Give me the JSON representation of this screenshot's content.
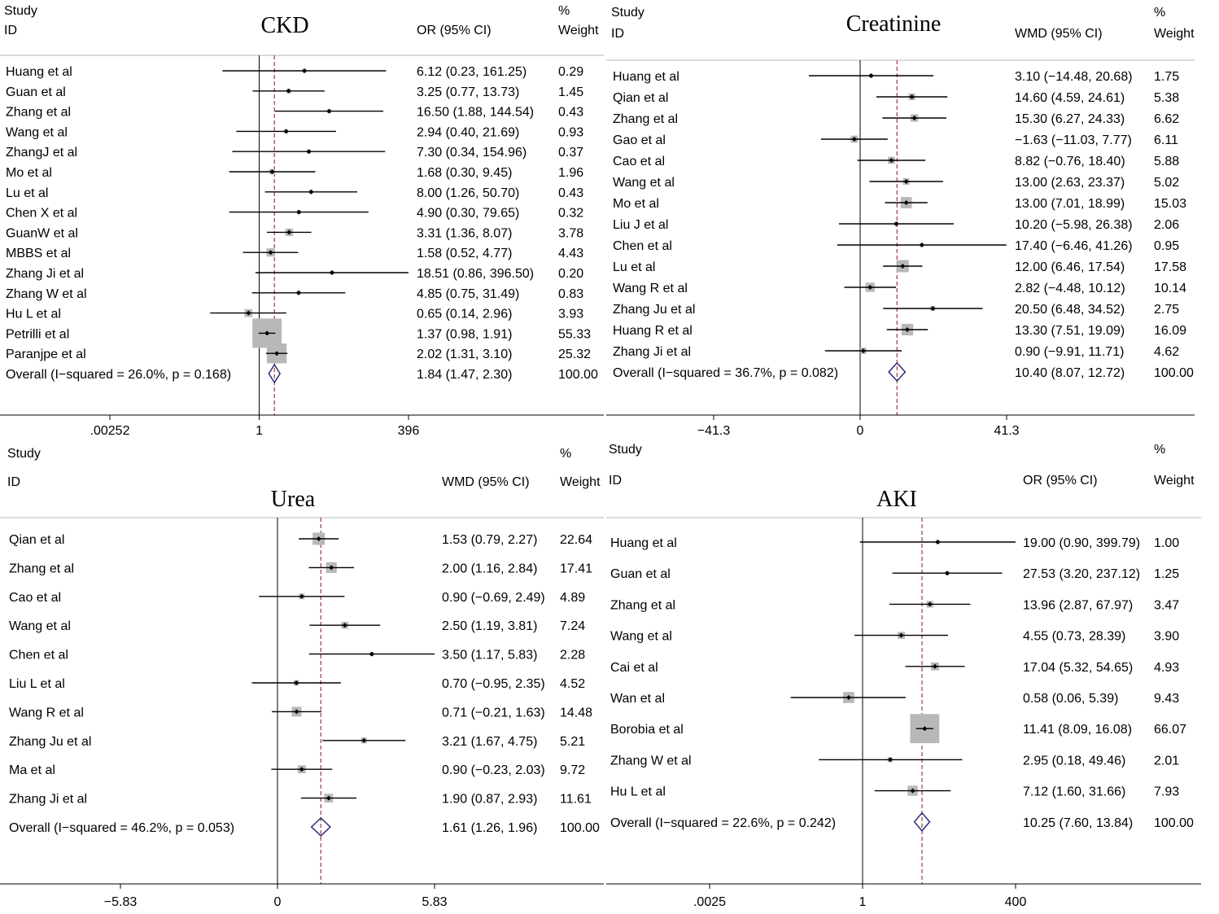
{
  "colors": {
    "box": "#b8b8b8",
    "line": "#000000",
    "diamond": "#2b2b7a",
    "overall_line": "#a23a3a"
  },
  "chart_data": [
    {
      "type": "forest",
      "title": "CKD",
      "col_study": "Study",
      "col_id": "ID",
      "col_effect": "OR (95% CI)",
      "col_pct": "%",
      "col_weight": "Weight",
      "scale": "log",
      "ticks": [
        ".00252",
        "1",
        "396"
      ],
      "tick_values": [
        0.00252,
        1,
        396
      ],
      "xlim": [
        0.00252,
        396
      ],
      "studies": [
        {
          "label": "Huang et al",
          "est": 6.12,
          "lo": 0.23,
          "hi": 161.25,
          "ci_text": "6.12 (0.23, 161.25)",
          "weight": "0.29"
        },
        {
          "label": "Guan et al",
          "est": 3.25,
          "lo": 0.77,
          "hi": 13.73,
          "ci_text": "3.25 (0.77, 13.73)",
          "weight": "1.45"
        },
        {
          "label": "Zhang et al",
          "est": 16.5,
          "lo": 1.88,
          "hi": 144.54,
          "ci_text": "16.50 (1.88, 144.54)",
          "weight": "0.43"
        },
        {
          "label": "Wang et al",
          "est": 2.94,
          "lo": 0.4,
          "hi": 21.69,
          "ci_text": "2.94 (0.40, 21.69)",
          "weight": "0.93"
        },
        {
          "label": "ZhangJ et al",
          "est": 7.3,
          "lo": 0.34,
          "hi": 154.96,
          "ci_text": "7.30 (0.34, 154.96)",
          "weight": "0.37"
        },
        {
          "label": "Mo et al",
          "est": 1.68,
          "lo": 0.3,
          "hi": 9.45,
          "ci_text": "1.68 (0.30, 9.45)",
          "weight": "1.96"
        },
        {
          "label": "Lu et al",
          "est": 8.0,
          "lo": 1.26,
          "hi": 50.7,
          "ci_text": "8.00 (1.26, 50.70)",
          "weight": "0.43"
        },
        {
          "label": "Chen X et al",
          "est": 4.9,
          "lo": 0.3,
          "hi": 79.65,
          "ci_text": "4.90 (0.30, 79.65)",
          "weight": "0.32"
        },
        {
          "label": "GuanW et al",
          "est": 3.31,
          "lo": 1.36,
          "hi": 8.07,
          "ci_text": "3.31 (1.36, 8.07)",
          "weight": "3.78"
        },
        {
          "label": "MBBS et al",
          "est": 1.58,
          "lo": 0.52,
          "hi": 4.77,
          "ci_text": "1.58 (0.52, 4.77)",
          "weight": "4.43"
        },
        {
          "label": "Zhang Ji et al",
          "est": 18.51,
          "lo": 0.86,
          "hi": 396.5,
          "ci_text": "18.51 (0.86, 396.50)",
          "weight": "0.20"
        },
        {
          "label": "Zhang W et al",
          "est": 4.85,
          "lo": 0.75,
          "hi": 31.49,
          "ci_text": "4.85 (0.75, 31.49)",
          "weight": "0.83"
        },
        {
          "label": "Hu L et al",
          "est": 0.65,
          "lo": 0.14,
          "hi": 2.96,
          "ci_text": "0.65 (0.14, 2.96)",
          "weight": "3.93"
        },
        {
          "label": "Petrilli et al",
          "est": 1.37,
          "lo": 0.98,
          "hi": 1.91,
          "ci_text": "1.37 (0.98, 1.91)",
          "weight": "55.33"
        },
        {
          "label": "Paranjpe et al",
          "est": 2.02,
          "lo": 1.31,
          "hi": 3.1,
          "ci_text": "2.02 (1.31, 3.10)",
          "weight": "25.32"
        }
      ],
      "overall": {
        "label": "Overall  (I−squared = 26.0%, p = 0.168)",
        "est": 1.84,
        "lo": 1.47,
        "hi": 2.3,
        "ci_text": "1.84 (1.47, 2.30)",
        "weight": "100.00"
      }
    },
    {
      "type": "forest",
      "title": "Creatinine",
      "col_study": "Study",
      "col_id": "ID",
      "col_effect": "WMD (95% CI)",
      "col_pct": "%",
      "col_weight": "Weight",
      "scale": "linear",
      "ticks": [
        "−41.3",
        "0",
        "41.3"
      ],
      "tick_values": [
        -41.3,
        0,
        41.3
      ],
      "xlim": [
        -41.3,
        41.3
      ],
      "studies": [
        {
          "label": "Huang et al",
          "est": 3.1,
          "lo": -14.48,
          "hi": 20.68,
          "ci_text": "3.10 (−14.48, 20.68)",
          "weight": "1.75"
        },
        {
          "label": "Qian et al",
          "est": 14.6,
          "lo": 4.59,
          "hi": 24.61,
          "ci_text": "14.60 (4.59, 24.61)",
          "weight": "5.38"
        },
        {
          "label": "Zhang et al",
          "est": 15.3,
          "lo": 6.27,
          "hi": 24.33,
          "ci_text": "15.30 (6.27, 24.33)",
          "weight": "6.62"
        },
        {
          "label": "Gao et al",
          "est": -1.63,
          "lo": -11.03,
          "hi": 7.77,
          "ci_text": "−1.63 (−11.03, 7.77)",
          "weight": "6.11"
        },
        {
          "label": "Cao et al",
          "est": 8.82,
          "lo": -0.76,
          "hi": 18.4,
          "ci_text": "8.82 (−0.76, 18.40)",
          "weight": "5.88"
        },
        {
          "label": "Wang et al",
          "est": 13.0,
          "lo": 2.63,
          "hi": 23.37,
          "ci_text": "13.00 (2.63, 23.37)",
          "weight": "5.02"
        },
        {
          "label": "Mo et al",
          "est": 13.0,
          "lo": 7.01,
          "hi": 18.99,
          "ci_text": "13.00 (7.01, 18.99)",
          "weight": "15.03"
        },
        {
          "label": "Liu J et al",
          "est": 10.2,
          "lo": -5.98,
          "hi": 26.38,
          "ci_text": "10.20 (−5.98, 26.38)",
          "weight": "2.06"
        },
        {
          "label": "Chen et al",
          "est": 17.4,
          "lo": -6.46,
          "hi": 41.26,
          "ci_text": "17.40 (−6.46, 41.26)",
          "weight": "0.95"
        },
        {
          "label": "Lu et al",
          "est": 12.0,
          "lo": 6.46,
          "hi": 17.54,
          "ci_text": "12.00 (6.46, 17.54)",
          "weight": "17.58"
        },
        {
          "label": "Wang R et al",
          "est": 2.82,
          "lo": -4.48,
          "hi": 10.12,
          "ci_text": "2.82 (−4.48, 10.12)",
          "weight": "10.14"
        },
        {
          "label": "Zhang Ju et al",
          "est": 20.5,
          "lo": 6.48,
          "hi": 34.52,
          "ci_text": "20.50 (6.48, 34.52)",
          "weight": "2.75"
        },
        {
          "label": "Huang R et al",
          "est": 13.3,
          "lo": 7.51,
          "hi": 19.09,
          "ci_text": "13.30 (7.51, 19.09)",
          "weight": "16.09"
        },
        {
          "label": "Zhang Ji et al",
          "est": 0.9,
          "lo": -9.91,
          "hi": 11.71,
          "ci_text": "0.90 (−9.91, 11.71)",
          "weight": "4.62"
        }
      ],
      "overall": {
        "label": "Overall  (I−squared = 36.7%, p = 0.082)",
        "est": 10.4,
        "lo": 8.07,
        "hi": 12.72,
        "ci_text": "10.40 (8.07, 12.72)",
        "weight": "100.00"
      }
    },
    {
      "type": "forest",
      "title": "Urea",
      "col_study": "Study",
      "col_id": "ID",
      "col_effect": "WMD (95% CI)",
      "col_pct": "%",
      "col_weight": "Weight",
      "scale": "linear",
      "ticks": [
        "−5.83",
        "0",
        "5.83"
      ],
      "tick_values": [
        -5.83,
        0,
        5.83
      ],
      "xlim": [
        -5.83,
        5.83
      ],
      "studies": [
        {
          "label": "Qian et al",
          "est": 1.53,
          "lo": 0.79,
          "hi": 2.27,
          "ci_text": "1.53 (0.79, 2.27)",
          "weight": "22.64"
        },
        {
          "label": "Zhang et al",
          "est": 2.0,
          "lo": 1.16,
          "hi": 2.84,
          "ci_text": "2.00 (1.16, 2.84)",
          "weight": "17.41"
        },
        {
          "label": "Cao et al",
          "est": 0.9,
          "lo": -0.69,
          "hi": 2.49,
          "ci_text": "0.90 (−0.69, 2.49)",
          "weight": "4.89"
        },
        {
          "label": "Wang et al",
          "est": 2.5,
          "lo": 1.19,
          "hi": 3.81,
          "ci_text": "2.50 (1.19, 3.81)",
          "weight": "7.24"
        },
        {
          "label": "Chen et al",
          "est": 3.5,
          "lo": 1.17,
          "hi": 5.83,
          "ci_text": "3.50 (1.17, 5.83)",
          "weight": "2.28"
        },
        {
          "label": "Liu L et al",
          "est": 0.7,
          "lo": -0.95,
          "hi": 2.35,
          "ci_text": "0.70 (−0.95, 2.35)",
          "weight": "4.52"
        },
        {
          "label": "Wang R et al",
          "est": 0.71,
          "lo": -0.21,
          "hi": 1.63,
          "ci_text": "0.71 (−0.21, 1.63)",
          "weight": "14.48"
        },
        {
          "label": "Zhang Ju et al",
          "est": 3.21,
          "lo": 1.67,
          "hi": 4.75,
          "ci_text": "3.21 (1.67, 4.75)",
          "weight": "5.21"
        },
        {
          "label": "Ma et al",
          "est": 0.9,
          "lo": -0.23,
          "hi": 2.03,
          "ci_text": "0.90 (−0.23, 2.03)",
          "weight": "9.72"
        },
        {
          "label": "Zhang Ji et al",
          "est": 1.9,
          "lo": 0.87,
          "hi": 2.93,
          "ci_text": "1.90 (0.87, 2.93)",
          "weight": "11.61"
        }
      ],
      "overall": {
        "label": "Overall  (I−squared = 46.2%, p = 0.053)",
        "est": 1.61,
        "lo": 1.26,
        "hi": 1.96,
        "ci_text": "1.61 (1.26, 1.96)",
        "weight": "100.00"
      }
    },
    {
      "type": "forest",
      "title": "AKI",
      "col_study": "Study",
      "col_id": "ID",
      "col_effect": "OR (95% CI)",
      "col_pct": "%",
      "col_weight": "Weight",
      "scale": "log",
      "ticks": [
        ".0025",
        "1",
        "400"
      ],
      "tick_values": [
        0.0025,
        1,
        400
      ],
      "xlim": [
        0.0025,
        400
      ],
      "studies": [
        {
          "label": "Huang et al",
          "est": 19.0,
          "lo": 0.9,
          "hi": 399.79,
          "ci_text": "19.00 (0.90, 399.79)",
          "weight": "1.00"
        },
        {
          "label": "Guan et al",
          "est": 27.53,
          "lo": 3.2,
          "hi": 237.12,
          "ci_text": "27.53 (3.20, 237.12)",
          "weight": "1.25"
        },
        {
          "label": "Zhang et al",
          "est": 13.96,
          "lo": 2.87,
          "hi": 67.97,
          "ci_text": "13.96 (2.87, 67.97)",
          "weight": "3.47"
        },
        {
          "label": "Wang et al",
          "est": 4.55,
          "lo": 0.73,
          "hi": 28.39,
          "ci_text": "4.55 (0.73, 28.39)",
          "weight": "3.90"
        },
        {
          "label": "Cai et al",
          "est": 17.04,
          "lo": 5.32,
          "hi": 54.65,
          "ci_text": "17.04 (5.32, 54.65)",
          "weight": "4.93"
        },
        {
          "label": "Wan et al",
          "est": 0.58,
          "lo": 0.06,
          "hi": 5.39,
          "ci_text": "0.58 (0.06, 5.39)",
          "weight": "9.43"
        },
        {
          "label": "Borobia et al",
          "est": 11.41,
          "lo": 8.09,
          "hi": 16.08,
          "ci_text": "11.41 (8.09, 16.08)",
          "weight": "66.07"
        },
        {
          "label": "Zhang W et al",
          "est": 2.95,
          "lo": 0.18,
          "hi": 49.46,
          "ci_text": "2.95 (0.18, 49.46)",
          "weight": "2.01"
        },
        {
          "label": "Hu L et al",
          "est": 7.12,
          "lo": 1.6,
          "hi": 31.66,
          "ci_text": "7.12 (1.60, 31.66)",
          "weight": "7.93"
        }
      ],
      "overall": {
        "label": "Overall  (I−squared = 22.6%, p = 0.242)",
        "est": 10.25,
        "lo": 7.6,
        "hi": 13.84,
        "ci_text": "10.25 (7.60, 13.84)",
        "weight": "100.00"
      }
    }
  ]
}
